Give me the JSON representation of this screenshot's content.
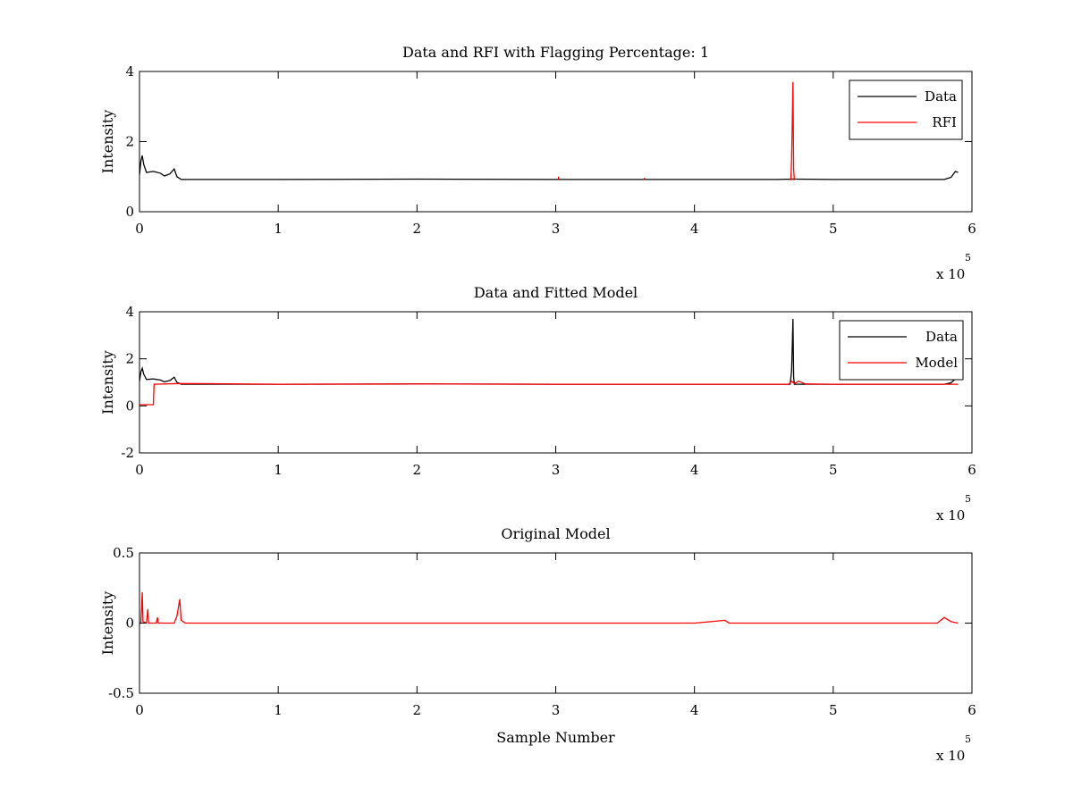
{
  "figure": {
    "background": "#ffffff",
    "exponent_base": "x 10",
    "exponent_power": "5"
  },
  "chart_data": [
    {
      "type": "line",
      "title": "Data and RFI with Flagging Percentage: 1",
      "xlabel": "",
      "ylabel": "Intensity",
      "xlim": [
        0,
        6
      ],
      "ylim": [
        0,
        4
      ],
      "xticks": [
        0,
        1,
        2,
        3,
        4,
        5,
        6
      ],
      "yticks": [
        0,
        2,
        4
      ],
      "x_scale_note": "x 10^5",
      "grid": false,
      "legend": "top-right",
      "series": [
        {
          "name": "Data",
          "color": "#000000",
          "points": [
            [
              0,
              1.05
            ],
            [
              0.01,
              1.45
            ],
            [
              0.02,
              1.6
            ],
            [
              0.03,
              1.35
            ],
            [
              0.05,
              1.12
            ],
            [
              0.1,
              1.15
            ],
            [
              0.15,
              1.1
            ],
            [
              0.18,
              1.02
            ],
            [
              0.22,
              1.08
            ],
            [
              0.25,
              1.22
            ],
            [
              0.27,
              1.0
            ],
            [
              0.3,
              0.92
            ],
            [
              1.0,
              0.92
            ],
            [
              2.0,
              0.93
            ],
            [
              3.0,
              0.92
            ],
            [
              4.0,
              0.92
            ],
            [
              4.6,
              0.92
            ],
            [
              4.7,
              0.93
            ],
            [
              5.0,
              0.92
            ],
            [
              5.5,
              0.92
            ],
            [
              5.8,
              0.92
            ],
            [
              5.85,
              0.98
            ],
            [
              5.88,
              1.15
            ],
            [
              5.9,
              1.12
            ]
          ]
        },
        {
          "name": "RFI",
          "color": "#ff0000",
          "points": [
            [
              4.695,
              0.9
            ],
            [
              4.7,
              1.5
            ],
            [
              4.705,
              2.6
            ],
            [
              4.71,
              3.7
            ],
            [
              4.715,
              1.2
            ],
            [
              4.72,
              0.9
            ]
          ],
          "extra_spikes": [
            [
              3.02,
              1.0
            ],
            [
              3.64,
              0.97
            ]
          ]
        }
      ]
    },
    {
      "type": "line",
      "title": "Data and Fitted Model",
      "xlabel": "",
      "ylabel": "Intensity",
      "xlim": [
        0,
        6
      ],
      "ylim": [
        -2,
        4
      ],
      "xticks": [
        0,
        1,
        2,
        3,
        4,
        5,
        6
      ],
      "yticks": [
        -2,
        0,
        2,
        4
      ],
      "x_scale_note": "x 10^5",
      "grid": false,
      "legend": "top-right",
      "series": [
        {
          "name": "Data",
          "color": "#000000",
          "points": [
            [
              0,
              1.05
            ],
            [
              0.01,
              1.45
            ],
            [
              0.02,
              1.6
            ],
            [
              0.03,
              1.35
            ],
            [
              0.05,
              1.12
            ],
            [
              0.1,
              1.15
            ],
            [
              0.15,
              1.1
            ],
            [
              0.18,
              1.02
            ],
            [
              0.22,
              1.08
            ],
            [
              0.25,
              1.22
            ],
            [
              0.27,
              1.0
            ],
            [
              0.3,
              0.92
            ],
            [
              1.0,
              0.92
            ],
            [
              2.0,
              0.93
            ],
            [
              3.0,
              0.92
            ],
            [
              4.0,
              0.92
            ],
            [
              4.69,
              0.92
            ],
            [
              4.7,
              1.5
            ],
            [
              4.705,
              2.6
            ],
            [
              4.71,
              3.7
            ],
            [
              4.715,
              1.2
            ],
            [
              4.72,
              0.92
            ],
            [
              5.0,
              0.92
            ],
            [
              5.5,
              0.92
            ],
            [
              5.8,
              0.92
            ],
            [
              5.85,
              0.98
            ],
            [
              5.88,
              1.15
            ],
            [
              5.9,
              1.12
            ]
          ]
        },
        {
          "name": "Model",
          "color": "#ff0000",
          "points": [
            [
              0,
              0.05
            ],
            [
              0.1,
              0.05
            ],
            [
              0.105,
              0.92
            ],
            [
              0.3,
              0.95
            ],
            [
              1.0,
              0.92
            ],
            [
              2.0,
              0.93
            ],
            [
              3.0,
              0.92
            ],
            [
              4.0,
              0.92
            ],
            [
              4.68,
              0.92
            ],
            [
              4.7,
              1.05
            ],
            [
              4.72,
              0.95
            ],
            [
              4.75,
              1.05
            ],
            [
              4.8,
              0.93
            ],
            [
              5.0,
              0.92
            ],
            [
              5.5,
              0.92
            ],
            [
              5.9,
              0.92
            ]
          ]
        }
      ]
    },
    {
      "type": "line",
      "title": "Original Model",
      "xlabel": "Sample Number",
      "ylabel": "Intensity",
      "xlim": [
        0,
        6
      ],
      "ylim": [
        -0.5,
        0.5
      ],
      "xticks": [
        0,
        1,
        2,
        3,
        4,
        5,
        6
      ],
      "yticks": [
        -0.5,
        0,
        0.5
      ],
      "ytick_labels": [
        "-0.5",
        "0",
        "0.5"
      ],
      "x_scale_note": "x 10^5",
      "grid": false,
      "legend": "none",
      "series": [
        {
          "color": "#ff0000",
          "points": [
            [
              0,
              0.0
            ],
            [
              0.01,
              0.0
            ],
            [
              0.02,
              0.22
            ],
            [
              0.025,
              0.01
            ],
            [
              0.05,
              0.0
            ],
            [
              0.06,
              0.1
            ],
            [
              0.065,
              0.0
            ],
            [
              0.12,
              0.0
            ],
            [
              0.13,
              0.04
            ],
            [
              0.135,
              0.0
            ],
            [
              0.25,
              0.0
            ],
            [
              0.27,
              0.05
            ],
            [
              0.29,
              0.17
            ],
            [
              0.3,
              0.02
            ],
            [
              0.33,
              0.0
            ],
            [
              1.0,
              0.0
            ],
            [
              2.0,
              0.0
            ],
            [
              3.0,
              0.0
            ],
            [
              4.0,
              0.0
            ],
            [
              4.22,
              0.02
            ],
            [
              4.25,
              0.0
            ],
            [
              5.0,
              0.0
            ],
            [
              5.75,
              0.0
            ],
            [
              5.8,
              0.04
            ],
            [
              5.85,
              0.01
            ],
            [
              5.9,
              0.0
            ]
          ]
        }
      ]
    }
  ]
}
